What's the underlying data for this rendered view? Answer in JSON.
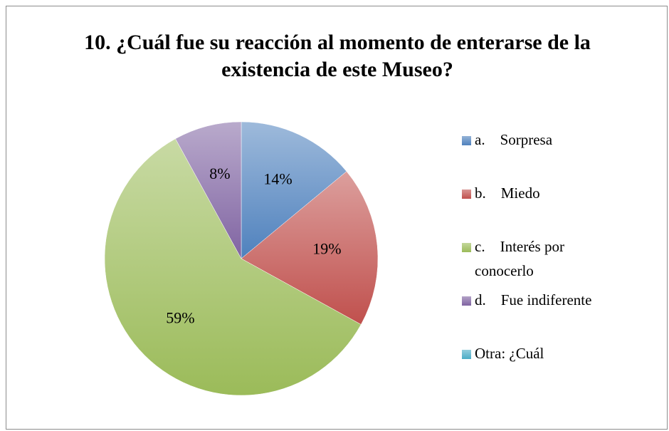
{
  "chart_data": {
    "type": "pie",
    "title": "10. ¿Cuál fue su reacción al momento de enterarse de la existencia de este Museo?",
    "categories": [
      "a.    Sorpresa",
      "b.    Miedo",
      "c.    Interés por conocerlo",
      "d.    Fue indiferente",
      "Otra: ¿Cuál"
    ],
    "values": [
      14,
      19,
      59,
      8,
      0
    ],
    "value_labels": [
      "14%",
      "19%",
      "59%",
      "8%",
      null
    ],
    "colors": [
      "#4f81bd",
      "#c0504d",
      "#9bbb59",
      "#8064a2",
      "#4bacc6"
    ],
    "legend": "right"
  }
}
